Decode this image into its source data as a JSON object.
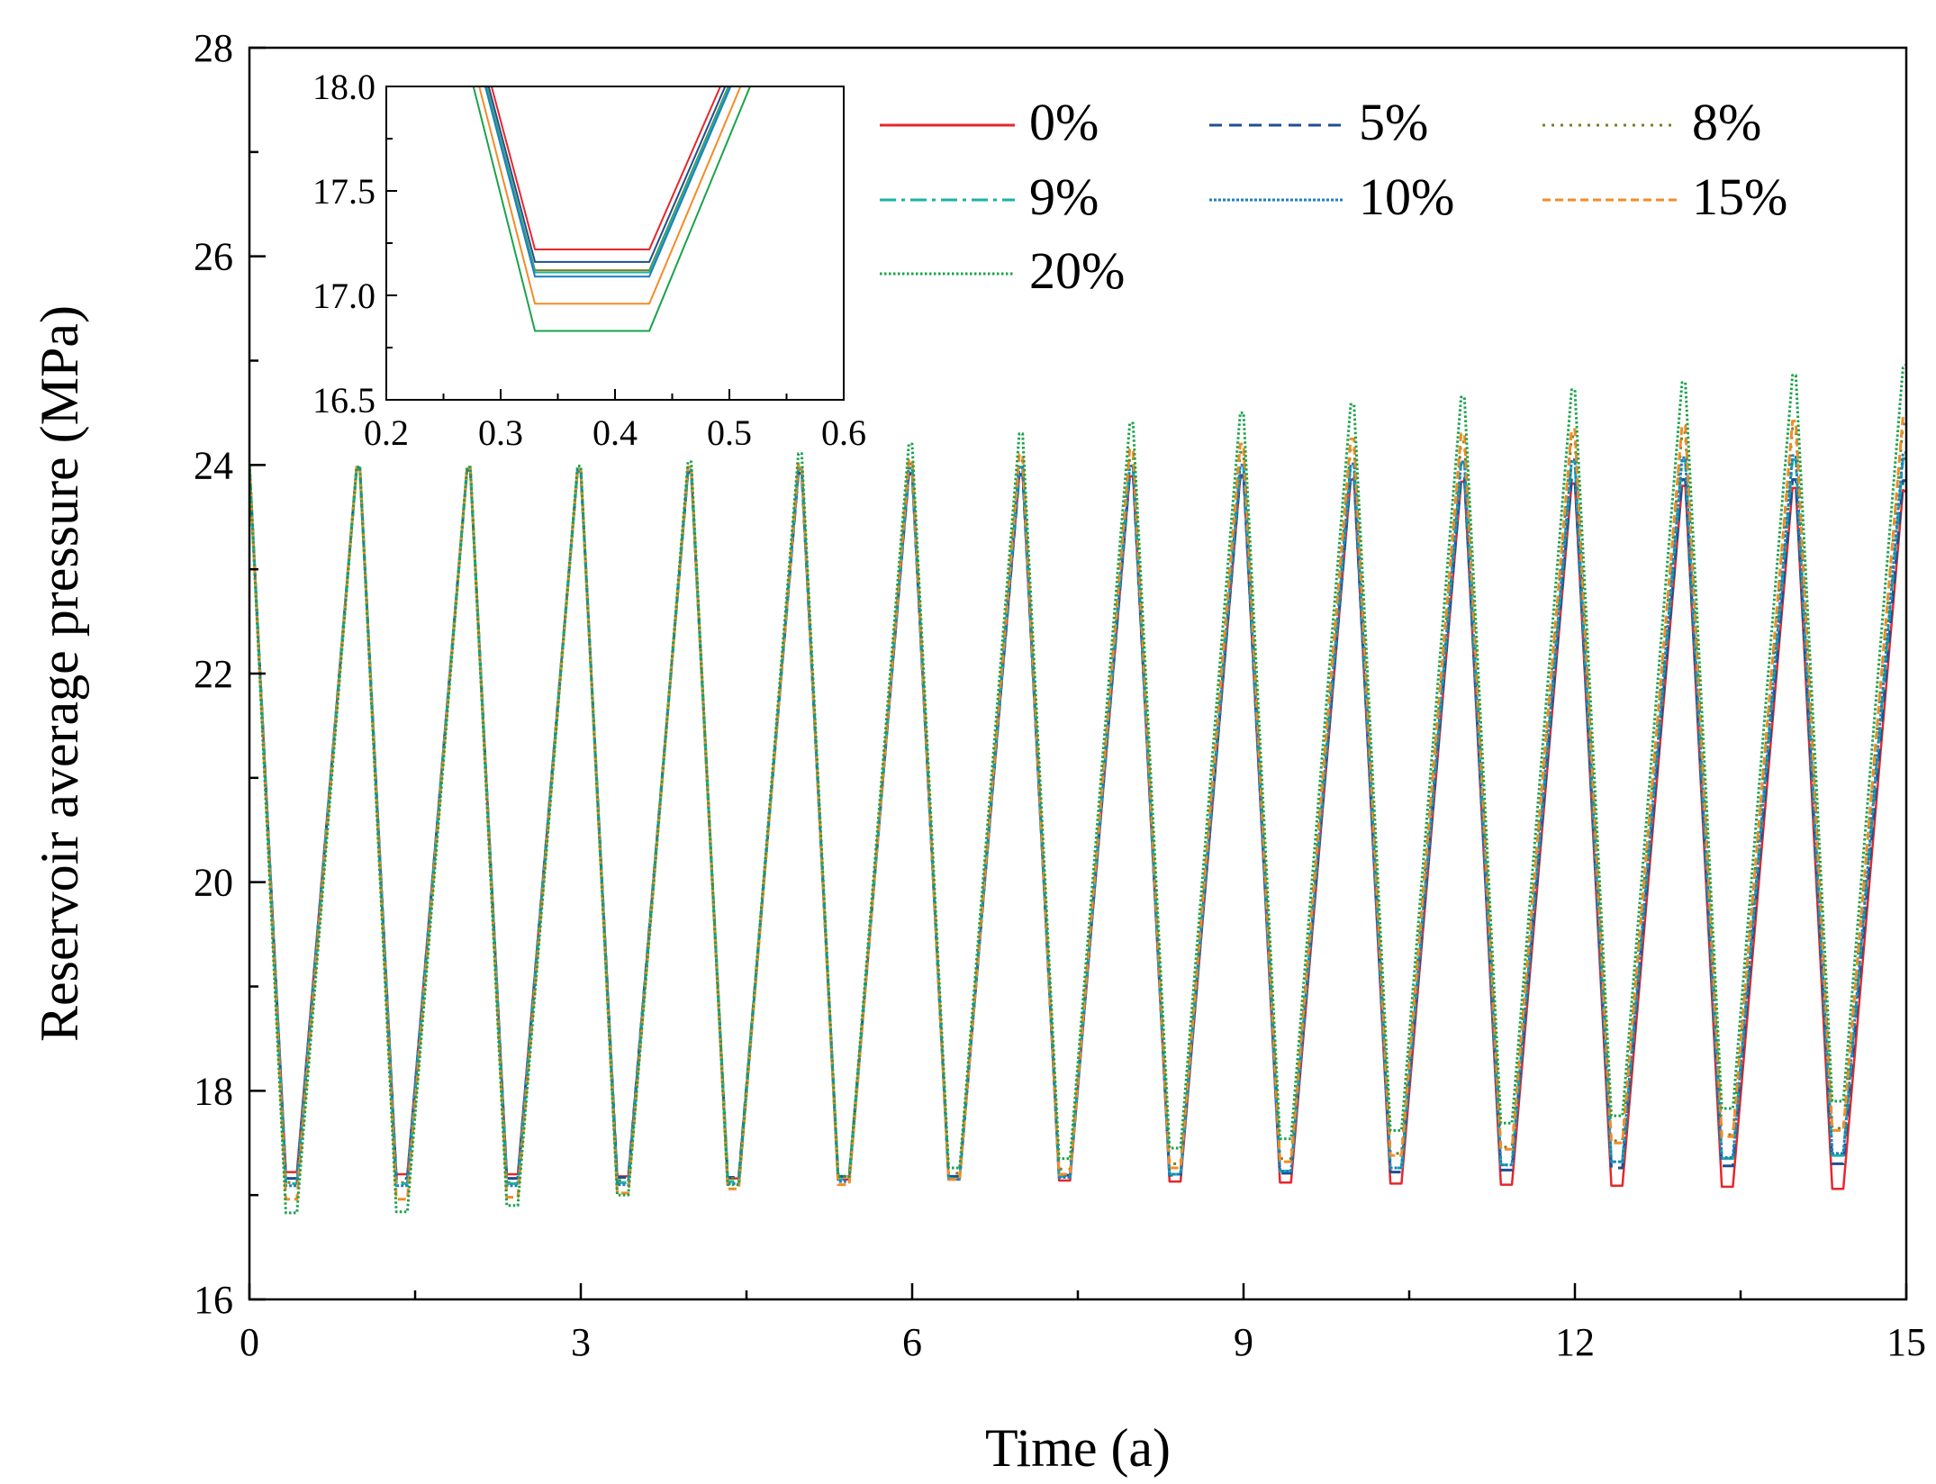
{
  "chart_data": [
    {
      "id": "main",
      "type": "line",
      "title": "",
      "xlabel": "Time (a)",
      "ylabel": "Reservoir average pressure (MPa)",
      "xlim": [
        0,
        15
      ],
      "ylim": [
        16,
        28
      ],
      "xticks": [
        0,
        3,
        6,
        9,
        12,
        15
      ],
      "yticks": [
        16,
        18,
        20,
        22,
        24,
        26,
        28
      ],
      "x_minor_step": 1.5,
      "y_minor_step": 1,
      "grid": false,
      "legend_position": "top-right",
      "cycle_description": "Each year: peak at t = n - 0.03 .. n, decline to trough t = n + 0.33 .. n + 0.43, then rise",
      "series": [
        {
          "name": "0%",
          "color": "#e8262a",
          "dash": "solid",
          "peaks": [
            23.96,
            23.95,
            23.94,
            23.93,
            23.92,
            23.91,
            23.9,
            23.89,
            23.88,
            23.86,
            23.84,
            23.82,
            23.8,
            23.78,
            23.76
          ],
          "troughs": [
            17.22,
            17.2,
            17.2,
            17.18,
            17.16,
            17.15,
            17.15,
            17.14,
            17.13,
            17.12,
            17.11,
            17.1,
            17.09,
            17.08,
            17.06
          ],
          "end": 23.74
        },
        {
          "name": "5%",
          "color": "#1f4f8f",
          "dash": "dashed",
          "peaks": [
            23.96,
            23.95,
            23.94,
            23.93,
            23.92,
            23.92,
            23.91,
            23.91,
            23.9,
            23.89,
            23.88,
            23.87,
            23.86,
            23.86,
            23.85
          ],
          "troughs": [
            17.16,
            17.16,
            17.16,
            17.17,
            17.17,
            17.18,
            17.18,
            17.19,
            17.19,
            17.21,
            17.22,
            17.24,
            17.26,
            17.28,
            17.3
          ],
          "end": 23.85
        },
        {
          "name": "8%",
          "color": "#7d7d20",
          "dash": "dotted",
          "peaks": [
            23.97,
            23.96,
            23.95,
            23.96,
            23.98,
            24.01,
            24.04,
            24.08,
            24.12,
            24.17,
            24.22,
            24.27,
            24.31,
            24.35,
            24.39
          ],
          "troughs": [
            17.12,
            17.12,
            17.12,
            17.14,
            17.16,
            17.18,
            17.21,
            17.25,
            17.3,
            17.35,
            17.4,
            17.46,
            17.52,
            17.58,
            17.64
          ],
          "end": 24.4
        },
        {
          "name": "9%",
          "color": "#18b3a2",
          "dash": "dashdot",
          "peaks": [
            23.97,
            23.96,
            23.95,
            23.95,
            23.96,
            23.97,
            23.98,
            23.99,
            24.0,
            24.01,
            24.02,
            24.03,
            24.04,
            24.05,
            24.06
          ],
          "troughs": [
            17.11,
            17.11,
            17.11,
            17.12,
            17.13,
            17.15,
            17.16,
            17.18,
            17.2,
            17.23,
            17.26,
            17.29,
            17.32,
            17.35,
            17.38
          ],
          "end": 24.06
        },
        {
          "name": "10%",
          "color": "#1f7fc0",
          "dash": "shortdot",
          "peaks": [
            23.97,
            23.96,
            23.95,
            23.95,
            23.96,
            23.97,
            23.98,
            23.99,
            24.0,
            24.01,
            24.03,
            24.05,
            24.07,
            24.09,
            24.11
          ],
          "troughs": [
            17.09,
            17.09,
            17.09,
            17.1,
            17.11,
            17.13,
            17.15,
            17.17,
            17.2,
            17.23,
            17.26,
            17.29,
            17.32,
            17.36,
            17.4
          ],
          "end": 24.12
        },
        {
          "name": "15%",
          "color": "#f28c28",
          "dash": "dashedshort",
          "peaks": [
            23.98,
            23.97,
            23.96,
            23.98,
            24.01,
            24.05,
            24.1,
            24.15,
            24.2,
            24.25,
            24.3,
            24.34,
            24.38,
            24.42,
            24.46
          ],
          "troughs": [
            16.96,
            16.96,
            16.98,
            17.02,
            17.06,
            17.1,
            17.15,
            17.2,
            17.26,
            17.32,
            17.38,
            17.44,
            17.5,
            17.56,
            17.62
          ],
          "end": 24.48
        },
        {
          "name": "20%",
          "color": "#1aa34a",
          "dash": "dense",
          "peaks": [
            23.98,
            23.98,
            23.99,
            24.03,
            24.11,
            24.2,
            24.3,
            24.4,
            24.5,
            24.58,
            24.65,
            24.72,
            24.79,
            24.86,
            24.93
          ],
          "troughs": [
            16.83,
            16.84,
            16.9,
            17.0,
            17.1,
            17.18,
            17.26,
            17.35,
            17.45,
            17.54,
            17.62,
            17.69,
            17.76,
            17.83,
            17.9
          ],
          "end": 24.96
        }
      ],
      "start_value": 24.0
    },
    {
      "id": "inset",
      "type": "line",
      "title": "",
      "xlabel": "",
      "ylabel": "",
      "xlim": [
        0.2,
        0.6
      ],
      "ylim": [
        16.5,
        18.0
      ],
      "xticks": [
        0.2,
        0.3,
        0.4,
        0.5,
        0.6
      ],
      "yticks": [
        16.5,
        17.0,
        17.5,
        18.0
      ],
      "x_minor_step": 0.05,
      "y_minor_step": 0.25,
      "series_troughs": [
        {
          "name": "0%",
          "color": "#e8262a",
          "value": 17.22
        },
        {
          "name": "5%",
          "color": "#1f4f8f",
          "value": 17.16
        },
        {
          "name": "8%",
          "color": "#7d7d20",
          "value": 17.12
        },
        {
          "name": "9%",
          "color": "#18b3a2",
          "value": 17.11
        },
        {
          "name": "10%",
          "color": "#1f7fc0",
          "value": 17.09
        },
        {
          "name": "15%",
          "color": "#f28c28",
          "value": 16.96
        },
        {
          "name": "20%",
          "color": "#1aa34a",
          "value": 16.83
        }
      ],
      "trough_start": 0.33,
      "trough_end": 0.43,
      "line_top": 24.0,
      "line_x_at_top_left": 0.0,
      "line_x_at_top_right": 0.97
    }
  ]
}
